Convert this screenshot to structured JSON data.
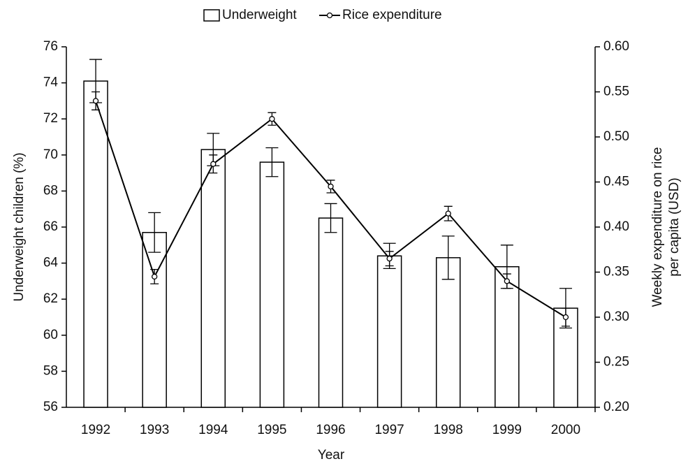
{
  "chart_data": {
    "type": "bar-line",
    "xlabel": "Year",
    "ylabel": "Underweight children (%)",
    "y2label": [
      "Weekly expenditure on rice",
      "per capita (USD)"
    ],
    "categories": [
      "1992",
      "1993",
      "1994",
      "1995",
      "1996",
      "1997",
      "1998",
      "1999",
      "2000"
    ],
    "series": [
      {
        "name": "Underweight",
        "type": "bar",
        "color": "#ffffff",
        "values": [
          74.1,
          65.7,
          70.3,
          69.6,
          66.5,
          64.4,
          64.3,
          63.8,
          61.5
        ],
        "errors": [
          1.2,
          1.1,
          0.9,
          0.8,
          0.8,
          0.7,
          1.2,
          1.2,
          1.1
        ]
      },
      {
        "name": "Rice expenditure",
        "type": "line",
        "axis": "y2",
        "color": "#000000",
        "values": [
          0.54,
          0.345,
          0.47,
          0.52,
          0.445,
          0.365,
          0.415,
          0.34,
          0.3
        ],
        "errors": [
          0.01,
          0.008,
          0.01,
          0.007,
          0.007,
          0.008,
          0.008,
          0.008,
          0.01
        ]
      }
    ],
    "ylim": [
      56,
      76
    ],
    "yticks": [
      56,
      58,
      60,
      62,
      64,
      66,
      68,
      70,
      72,
      74,
      76
    ],
    "y2lim": [
      0.2,
      0.6
    ],
    "y2ticks": [
      {
        "value": 0.2,
        "label": "0.20"
      },
      {
        "value": 0.25,
        "label": "0.25"
      },
      {
        "value": 0.3,
        "label": "0.30"
      },
      {
        "value": 0.35,
        "label": "0.35"
      },
      {
        "value": 0.4,
        "label": "0.40"
      },
      {
        "value": 0.45,
        "label": "0.45"
      },
      {
        "value": 0.5,
        "label": "0.50"
      },
      {
        "value": 0.55,
        "label": "0.55"
      },
      {
        "value": 0.6,
        "label": "0.60"
      }
    ],
    "legend": "top"
  }
}
